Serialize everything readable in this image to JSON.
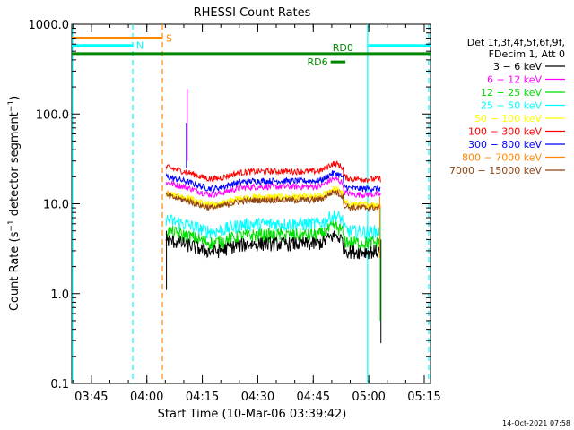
{
  "chart_data": {
    "type": "line",
    "title": "RHESSI Count Rates",
    "xlabel": "Start Time (10-Mar-06 03:39:42)",
    "ylabel_main": "Count Rate (s",
    "ylabel_sup1": "−1",
    "ylabel_mid": " detector segment",
    "ylabel_sup2": "−1",
    "ylabel_end": ")",
    "y_scale": "log",
    "ylim": [
      0.1,
      1000
    ],
    "xlim_minutes": [
      0,
      97
    ],
    "x_ticks": [
      {
        "minutes": 5.3,
        "label": "03:45"
      },
      {
        "minutes": 20.3,
        "label": "04:00"
      },
      {
        "minutes": 35.3,
        "label": "04:15"
      },
      {
        "minutes": 50.3,
        "label": "04:30"
      },
      {
        "minutes": 65.3,
        "label": "04:45"
      },
      {
        "minutes": 80.3,
        "label": "05:00"
      },
      {
        "minutes": 95.3,
        "label": "05:15"
      }
    ],
    "y_ticks": [
      {
        "value": 1000,
        "label": "1000.0"
      },
      {
        "value": 100,
        "label": "100.0"
      },
      {
        "value": 10,
        "label": "10.0"
      },
      {
        "value": 1,
        "label": "1.0"
      },
      {
        "value": 0.1,
        "label": "0.1"
      }
    ],
    "legend_title1": "Det 1f,3f,4f,5f,6f,9f,",
    "legend_title2": "FDecim 1, Att 0",
    "legend_position": "right",
    "data_start_min": 25.5,
    "data_end_min": 83.5,
    "series": [
      {
        "name": "3 − 6 keV",
        "color": "#000000",
        "level": 3.6
      },
      {
        "name": "6 − 12 keV",
        "color": "#ff00ff",
        "level": 15.5
      },
      {
        "name": "12 − 25 keV",
        "color": "#00dd00",
        "level": 4.5
      },
      {
        "name": "25 − 50 keV",
        "color": "#00ffff",
        "level": 6.0
      },
      {
        "name": "50 − 100 keV",
        "color": "#ffff00",
        "level": 12.0
      },
      {
        "name": "100 − 300 keV",
        "color": "#ff0000",
        "level": 23.0
      },
      {
        "name": "300 − 800 keV",
        "color": "#0000ff",
        "level": 18.0
      },
      {
        "name": "800 − 7000 keV",
        "color": "#ff8800",
        "level": 11.5
      },
      {
        "name": "7000 − 15000 keV",
        "color": "#8b4513",
        "level": 11.0
      }
    ],
    "annotations": [
      {
        "label": "S",
        "color": "#ff8800",
        "start_min": 0,
        "end_min": 24.5,
        "value": 700
      },
      {
        "label": "N",
        "color": "#00ffff",
        "start_min": 0,
        "end_min": 16.5,
        "value": 580
      },
      {
        "label": "",
        "color": "#00ffff",
        "start_min": 80,
        "end_min": 97,
        "value": 580
      },
      {
        "label": "RD0",
        "color": "#008800",
        "start_min": 0,
        "end_min": 97,
        "value": 470
      },
      {
        "label": "RD6",
        "color": "#008800",
        "start_min": 70,
        "end_min": 74,
        "value": 380
      }
    ],
    "vertical_markers": [
      {
        "minutes": 0.2,
        "color": "#00ffff",
        "style": "solid"
      },
      {
        "minutes": 16.5,
        "color": "#00ffff",
        "style": "dashed"
      },
      {
        "minutes": 24.5,
        "color": "#ff8800",
        "style": "dashed"
      },
      {
        "minutes": 80.0,
        "color": "#00ffff",
        "style": "solid"
      },
      {
        "minutes": 96.5,
        "color": "#00ffff",
        "style": "dashed"
      }
    ]
  },
  "footer_timestamp": "14-Oct-2021 07:58"
}
